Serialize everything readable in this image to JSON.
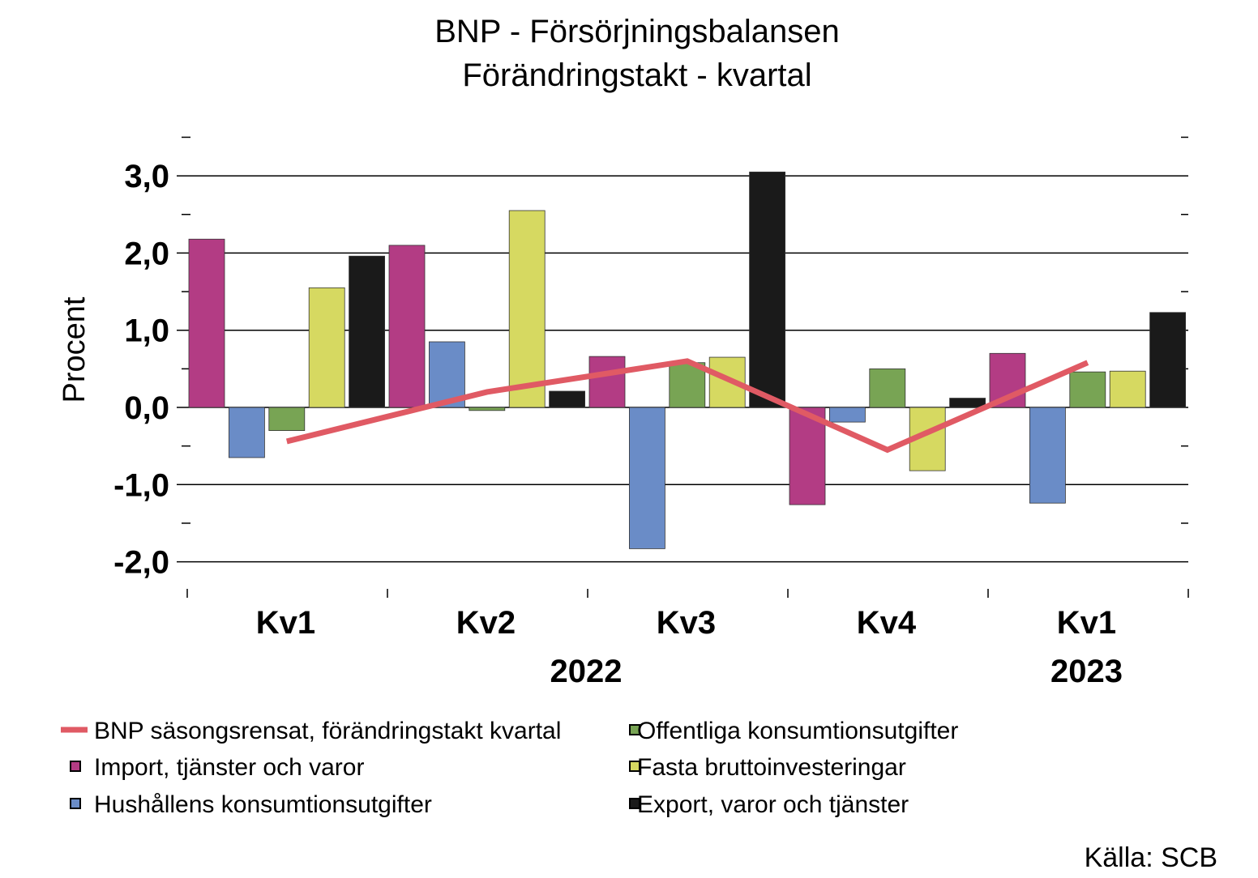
{
  "chart_data": {
    "type": "bar",
    "title": "BNP - Försörjningsbalansen",
    "subtitle": "Förändringstakt - kvartal",
    "ylabel": "Procent",
    "ylim": [
      -2.4,
      3.5
    ],
    "yticks": [
      3.0,
      2.0,
      1.0,
      0.0,
      -1.0,
      -2.0
    ],
    "ytick_labels": [
      "3,0",
      "2,0",
      "1,0",
      "0,0",
      "-1,0",
      "-2,0"
    ],
    "categories": [
      "Kv1",
      "Kv2",
      "Kv3",
      "Kv4",
      "Kv1"
    ],
    "year_labels": [
      {
        "label": "2022",
        "category_index": 1.5
      },
      {
        "label": "2023",
        "category_index": 4
      }
    ],
    "grid": true,
    "legend_placement": "bottom",
    "series": [
      {
        "name": "Import, tjänster och varor",
        "kind": "bar",
        "color": "#b33c84",
        "values": [
          2.18,
          2.1,
          0.66,
          -1.26,
          0.7
        ]
      },
      {
        "name": "Hushållens konsumtionsutgifter",
        "kind": "bar",
        "color": "#6a8cc7",
        "values": [
          -0.65,
          0.85,
          -1.83,
          -0.19,
          -1.24
        ]
      },
      {
        "name": "Offentliga konsumtionsutgifter",
        "kind": "bar",
        "color": "#78a454",
        "values": [
          -0.3,
          -0.04,
          0.58,
          0.5,
          0.46
        ]
      },
      {
        "name": "Fasta bruttoinvesteringar",
        "kind": "bar",
        "color": "#d6d961",
        "values": [
          1.55,
          2.55,
          0.65,
          -0.82,
          0.47
        ]
      },
      {
        "name": "Export, varor och tjänster",
        "kind": "bar",
        "color": "#1a1a1a",
        "values": [
          1.96,
          0.21,
          3.05,
          0.12,
          1.23
        ]
      },
      {
        "name": "BNP säsongsrensat, förändringstakt kvartal",
        "kind": "line",
        "color": "#e05a64",
        "values": [
          -0.44,
          0.2,
          0.6,
          -0.55,
          0.58
        ]
      }
    ],
    "legend_order": [
      "BNP säsongsrensat, förändringstakt kvartal",
      "Offentliga konsumtionsutgifter",
      "Import, tjänster och varor",
      "Fasta bruttoinvesteringar",
      "Hushållens konsumtionsutgifter",
      "Export, varor och tjänster"
    ],
    "source": "Källa: SCB"
  }
}
